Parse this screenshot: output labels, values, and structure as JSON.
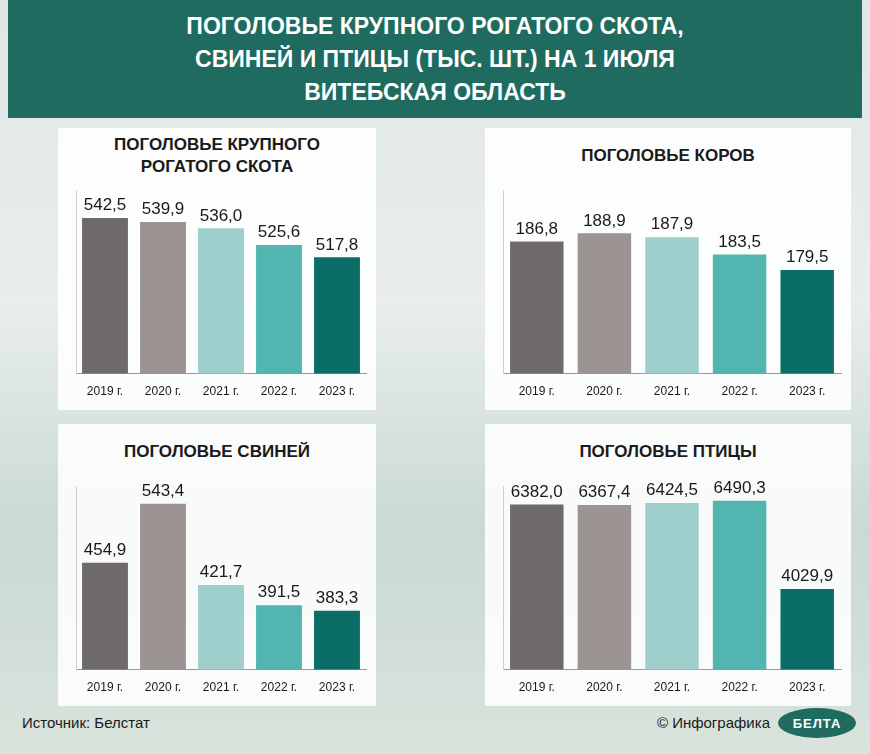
{
  "title": "ПОГОЛОВЬЕ КРУПНОГО РОГАТОГО СКОТА, СВИНЕЙ И ПТИЦЫ (ТЫС. ШТ.) НА 1 ИЮЛЯ",
  "subtitle": "ВИТЕБСКАЯ ОБЛАСТЬ",
  "source": "Источник: Белстат",
  "credit": "© Инфографика",
  "logo": "БЕЛТА",
  "chart_data": [
    {
      "type": "bar",
      "title": "ПОГОЛОВЬЕ КРУПНОГО РОГАТОГО СКОТА",
      "categories": [
        "2019 г.",
        "2020 г.",
        "2021 г.",
        "2022 г.",
        "2023 г."
      ],
      "values": [
        542.5,
        539.9,
        536.0,
        525.6,
        517.8
      ],
      "value_labels": [
        "542,5",
        "539,9",
        "536,0",
        "525,6",
        "517,8"
      ],
      "colors": [
        "#6e6a6a",
        "#9b9492",
        "#9ecfcc",
        "#52b5b0",
        "#0a6e66"
      ],
      "ylim": [
        445,
        560
      ],
      "yticks": [],
      "grid": false,
      "data_labels": true,
      "tick_labels": "x"
    },
    {
      "type": "bar",
      "title": "ПОГОЛОВЬЕ КОРОВ",
      "categories": [
        "2019 г.",
        "2020 г.",
        "2021 г.",
        "2022 г.",
        "2023 г."
      ],
      "values": [
        186.8,
        188.9,
        187.9,
        183.5,
        179.5
      ],
      "value_labels": [
        "186,8",
        "188,9",
        "187,9",
        "183,5",
        "179,5"
      ],
      "colors": [
        "#6e6a6a",
        "#9b9492",
        "#9ecfcc",
        "#52b5b0",
        "#0a6e66"
      ],
      "ylim": [
        153,
        200
      ],
      "yticks": [],
      "grid": false,
      "data_labels": true,
      "tick_labels": "x"
    },
    {
      "type": "bar",
      "title": "ПОГОЛОВЬЕ СВИНЕЙ",
      "categories": [
        "2019 г.",
        "2020 г.",
        "2021 г.",
        "2022 г.",
        "2023 г."
      ],
      "values": [
        454.9,
        543.4,
        421.7,
        391.5,
        383.3
      ],
      "value_labels": [
        "454,9",
        "543,4",
        "421,7",
        "391,5",
        "383,3"
      ],
      "colors": [
        "#6e6a6a",
        "#9b9492",
        "#9ecfcc",
        "#52b5b0",
        "#0a6e66"
      ],
      "ylim": [
        295,
        570
      ],
      "yticks": [],
      "grid": false,
      "data_labels": true,
      "tick_labels": "x"
    },
    {
      "type": "bar",
      "title": "ПОГОЛОВЬЕ ПТИЦЫ",
      "categories": [
        "2019 г.",
        "2020 г.",
        "2021 г.",
        "2022 г.",
        "2023 г."
      ],
      "values": [
        6382.0,
        6367.4,
        6424.5,
        6490.3,
        4029.9
      ],
      "value_labels": [
        "6382,0",
        "6367,4",
        "6424,5",
        "6490,3",
        "4029,9"
      ],
      "colors": [
        "#6e6a6a",
        "#9b9492",
        "#9ecfcc",
        "#52b5b0",
        "#0a6e66"
      ],
      "ylim": [
        1780,
        6900
      ],
      "yticks": [],
      "grid": false,
      "data_labels": true,
      "tick_labels": "x"
    }
  ]
}
